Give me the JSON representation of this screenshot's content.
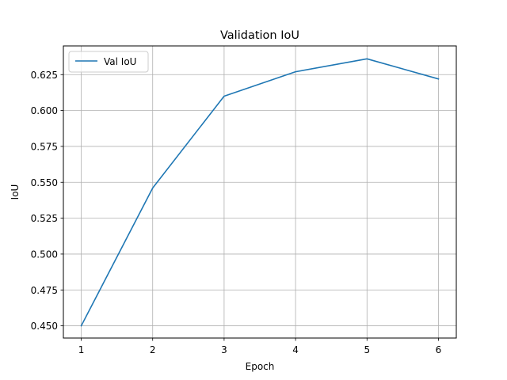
{
  "chart_data": {
    "type": "line",
    "title": "Validation IoU",
    "xlabel": "Epoch",
    "ylabel": "IoU",
    "x": [
      1,
      2,
      3,
      4,
      5,
      6
    ],
    "series": [
      {
        "name": "Val IoU",
        "values": [
          0.45,
          0.546,
          0.61,
          0.627,
          0.636,
          0.622
        ],
        "color": "#1f77b4"
      }
    ],
    "xlim": [
      0.75,
      6.25
    ],
    "ylim": [
      0.4415,
      0.645
    ],
    "x_ticks": [
      "1",
      "2",
      "3",
      "4",
      "5",
      "6"
    ],
    "y_ticks": [
      "0.450",
      "0.475",
      "0.500",
      "0.525",
      "0.550",
      "0.575",
      "0.600",
      "0.625"
    ],
    "grid": true,
    "legend_position": "upper left"
  }
}
